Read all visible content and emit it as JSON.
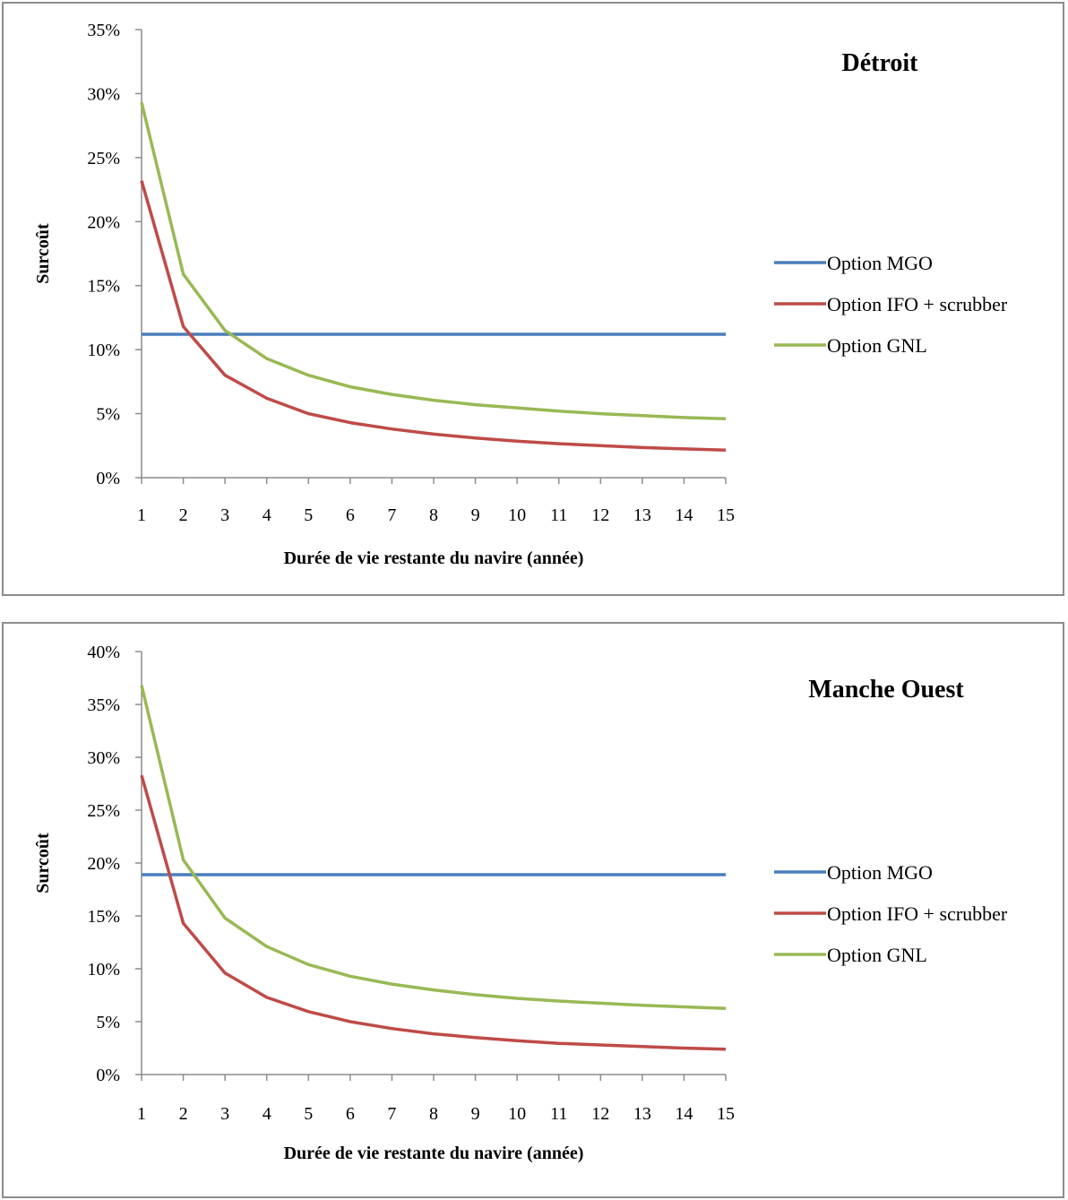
{
  "chart_data": [
    {
      "type": "line",
      "title": "Détroit",
      "xlabel": "Durée de vie restante du navire (année)",
      "ylabel": "Surcoût",
      "x": [
        1,
        2,
        3,
        4,
        5,
        6,
        7,
        8,
        9,
        10,
        11,
        12,
        13,
        14,
        15
      ],
      "ylim": [
        0,
        35
      ],
      "yticks": [
        0,
        5,
        10,
        15,
        20,
        25,
        30,
        35
      ],
      "ytick_suffix": "%",
      "grid": false,
      "legend_position": "right",
      "series": [
        {
          "name": "Option MGO",
          "color": "#4a7ebb",
          "values": [
            11.2,
            11.2,
            11.2,
            11.2,
            11.2,
            11.2,
            11.2,
            11.2,
            11.2,
            11.2,
            11.2,
            11.2,
            11.2,
            11.2,
            11.2
          ]
        },
        {
          "name": "Option IFO + scrubber",
          "color": "#be4b48",
          "values": [
            23.2,
            11.8,
            8.0,
            6.2,
            5.0,
            4.3,
            3.8,
            3.4,
            3.1,
            2.85,
            2.65,
            2.5,
            2.35,
            2.25,
            2.15
          ]
        },
        {
          "name": "Option GNL",
          "color": "#98b954",
          "values": [
            29.3,
            15.9,
            11.5,
            9.3,
            8.0,
            7.1,
            6.5,
            6.05,
            5.7,
            5.45,
            5.2,
            5.0,
            4.85,
            4.7,
            4.6
          ]
        }
      ]
    },
    {
      "type": "line",
      "title": "Manche Ouest",
      "xlabel": "Durée de vie restante du navire (année)",
      "ylabel": "Surcoût",
      "x": [
        1,
        2,
        3,
        4,
        5,
        6,
        7,
        8,
        9,
        10,
        11,
        12,
        13,
        14,
        15
      ],
      "ylim": [
        0,
        40
      ],
      "yticks": [
        0,
        5,
        10,
        15,
        20,
        25,
        30,
        35,
        40
      ],
      "ytick_suffix": "%",
      "grid": false,
      "legend_position": "right",
      "series": [
        {
          "name": "Option MGO",
          "color": "#4a7ebb",
          "values": [
            18.9,
            18.9,
            18.9,
            18.9,
            18.9,
            18.9,
            18.9,
            18.9,
            18.9,
            18.9,
            18.9,
            18.9,
            18.9,
            18.9,
            18.9
          ]
        },
        {
          "name": "Option IFO + scrubber",
          "color": "#be4b48",
          "values": [
            28.3,
            14.3,
            9.6,
            7.3,
            5.95,
            5.0,
            4.35,
            3.85,
            3.5,
            3.2,
            2.95,
            2.8,
            2.65,
            2.5,
            2.4
          ]
        },
        {
          "name": "Option GNL",
          "color": "#98b954",
          "values": [
            36.8,
            20.3,
            14.8,
            12.1,
            10.4,
            9.3,
            8.55,
            8.0,
            7.55,
            7.2,
            6.95,
            6.75,
            6.55,
            6.4,
            6.25
          ]
        }
      ]
    }
  ]
}
